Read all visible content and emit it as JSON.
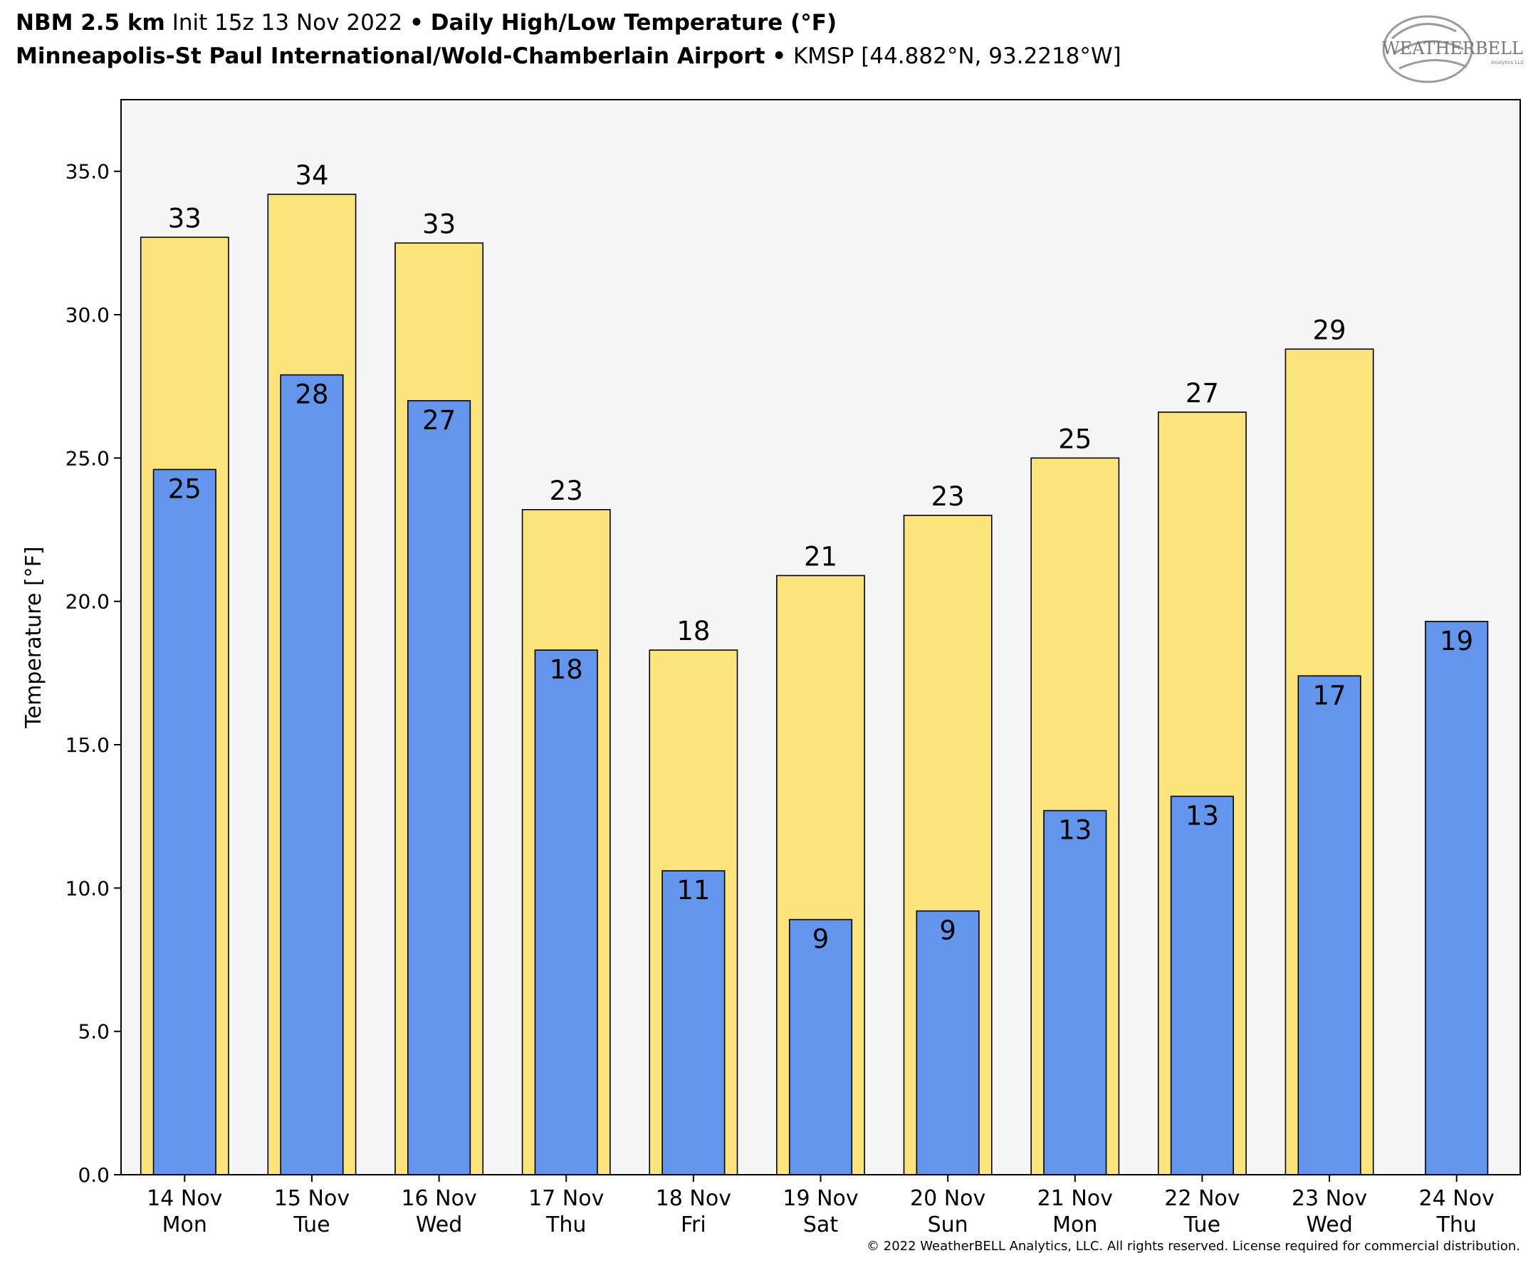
{
  "header": {
    "model": "NBM 2.5 km",
    "init": "Init 15z 13 Nov 2022",
    "sep": "•",
    "product": "Daily High/Low Temperature (°F)",
    "station_name": "Minneapolis-St Paul International/Wold-Chamberlain Airport",
    "station_info": "KMSP [44.882°N, 93.2218°W]"
  },
  "logo": {
    "text": "WEATHERBELL",
    "sub": "Analytics LLC"
  },
  "footer": {
    "copyright": "© 2022 WeatherBELL Analytics, LLC. All rights reserved. License required for commercial distribution."
  },
  "chart_data": {
    "type": "bar",
    "title": "Daily High/Low Temperature (°F)",
    "ylabel": "Temperature [°F]",
    "ylim": [
      0,
      37.5
    ],
    "yticks": [
      "0.0",
      "5.0",
      "10.0",
      "15.0",
      "20.0",
      "25.0",
      "30.0",
      "35.0"
    ],
    "grid": false,
    "categories": [
      [
        "14 Nov",
        "Mon"
      ],
      [
        "15 Nov",
        "Tue"
      ],
      [
        "16 Nov",
        "Wed"
      ],
      [
        "17 Nov",
        "Thu"
      ],
      [
        "18 Nov",
        "Fri"
      ],
      [
        "19 Nov",
        "Sat"
      ],
      [
        "20 Nov",
        "Sun"
      ],
      [
        "21 Nov",
        "Mon"
      ],
      [
        "22 Nov",
        "Tue"
      ],
      [
        "23 Nov",
        "Wed"
      ],
      [
        "24 Nov",
        "Thu"
      ]
    ],
    "series": [
      {
        "color": "#fce47c",
        "values": [
          32.7,
          34.2,
          32.5,
          23.2,
          18.3,
          20.9,
          23.0,
          25.0,
          26.6,
          28.8,
          null
        ],
        "labels": [
          "33",
          "34",
          "33",
          "23",
          "18",
          "21",
          "23",
          "25",
          "27",
          "29",
          null
        ]
      },
      {
        "color": "#6495ed",
        "values": [
          24.6,
          27.9,
          27.0,
          18.3,
          10.6,
          8.9,
          9.2,
          12.7,
          13.2,
          17.4,
          19.3
        ],
        "labels": [
          "25",
          "28",
          "27",
          "18",
          "11",
          "9",
          "9",
          "13",
          "13",
          "17",
          "19"
        ]
      }
    ],
    "plot_background": "#f5f5f5"
  }
}
